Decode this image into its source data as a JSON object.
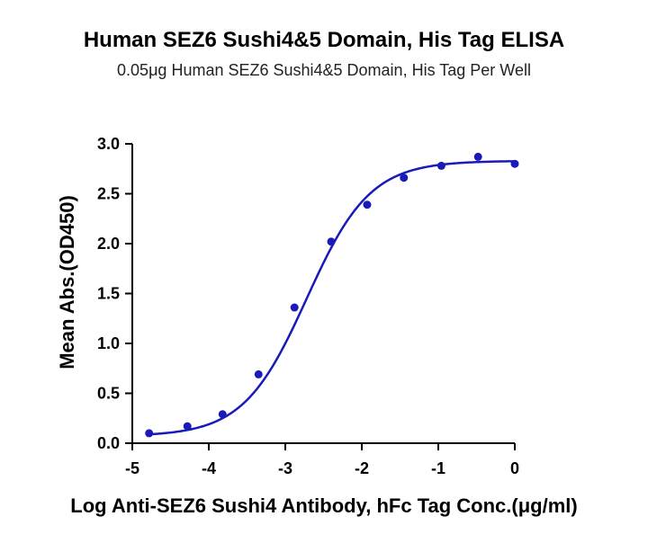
{
  "chart_data": {
    "type": "scatter",
    "title": "Human SEZ6 Sushi4&5 Domain, His Tag ELISA",
    "subtitle": "0.05μg Human SEZ6 Sushi4&5 Domain, His Tag Per Well",
    "xlabel": "Log Anti-SEZ6 Sushi4 Antibody, hFc Tag Conc.(μg/ml)",
    "ylabel": "Mean Abs.(OD450)",
    "xlim": [
      -5,
      0
    ],
    "ylim": [
      0,
      3.0
    ],
    "x_ticks": [
      -5,
      -4,
      -3,
      -2,
      -1,
      0
    ],
    "x_tick_labels": [
      "-5",
      "-4",
      "-3",
      "-2",
      "-1",
      "0"
    ],
    "y_ticks": [
      0.0,
      0.5,
      1.0,
      1.5,
      2.0,
      2.5,
      3.0
    ],
    "y_tick_labels": [
      "0.0",
      "0.5",
      "1.0",
      "1.5",
      "2.0",
      "2.5",
      "3.0"
    ],
    "grid": false,
    "legend": "none",
    "color": "#1a1ab8",
    "series": [
      {
        "points": [
          {
            "x": -4.78,
            "y": 0.1
          },
          {
            "x": -4.28,
            "y": 0.17
          },
          {
            "x": -3.82,
            "y": 0.29
          },
          {
            "x": -3.35,
            "y": 0.69
          },
          {
            "x": -2.88,
            "y": 1.36
          },
          {
            "x": -2.4,
            "y": 2.02
          },
          {
            "x": -1.93,
            "y": 2.39
          },
          {
            "x": -1.45,
            "y": 2.66
          },
          {
            "x": -0.96,
            "y": 2.78
          },
          {
            "x": -0.48,
            "y": 2.87
          },
          {
            "x": 0.0,
            "y": 2.8
          }
        ],
        "fit": {
          "bottom": 0.07,
          "top": 2.83,
          "logEC50": -2.72,
          "hill": 1.05
        }
      }
    ]
  }
}
